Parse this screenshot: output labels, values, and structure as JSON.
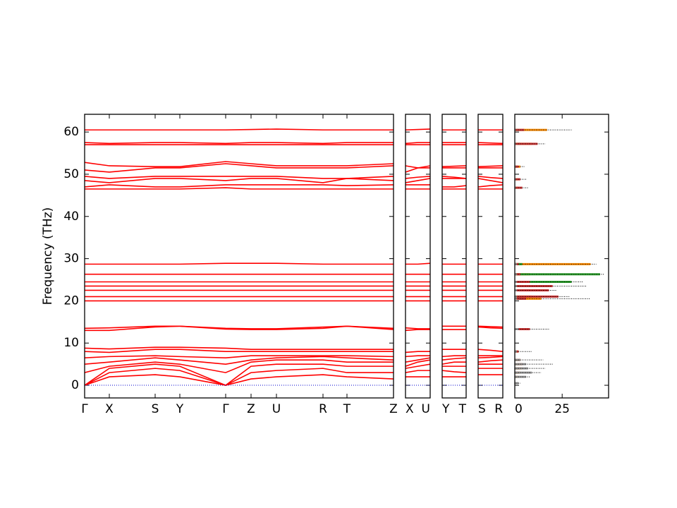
{
  "chart_data": [
    {
      "type": "line",
      "ylabel": "Frequency (THz)",
      "color": "#ff0000",
      "hline": 0,
      "hline_color": "#0000cc",
      "x": [
        0,
        0.35,
        1.0,
        1.35,
        2.0,
        2.36,
        2.72,
        3.38,
        3.72,
        4.38
      ],
      "xlim": [
        0,
        4.38
      ],
      "xticks": [
        {
          "value": 0,
          "label": "Γ"
        },
        {
          "value": 0.35,
          "label": "X"
        },
        {
          "value": 1.0,
          "label": "S"
        },
        {
          "value": 1.35,
          "label": "Y"
        },
        {
          "value": 2.0,
          "label": "Γ"
        },
        {
          "value": 2.36,
          "label": "Z"
        },
        {
          "value": 2.72,
          "label": "U"
        },
        {
          "value": 3.38,
          "label": "R"
        },
        {
          "value": 3.72,
          "label": "T"
        },
        {
          "value": 4.38,
          "label": "Z"
        }
      ],
      "ylim": [
        -3,
        64.2
      ],
      "yticks": [
        0,
        10,
        20,
        30,
        40,
        50,
        60
      ],
      "series": [
        {
          "values": [
            0,
            2,
            2.5,
            2,
            0,
            1.5,
            2,
            2.5,
            2,
            1.5
          ]
        },
        {
          "values": [
            0,
            3,
            4,
            3.5,
            0,
            3,
            3.5,
            4,
            3,
            3
          ]
        },
        {
          "values": [
            0,
            4,
            5,
            4.5,
            0,
            4.5,
            5,
            5,
            4.5,
            4.5
          ]
        },
        {
          "values": [
            3,
            4.5,
            5.5,
            5,
            3,
            5.5,
            6,
            6,
            5.5,
            5.5
          ]
        },
        {
          "values": [
            5,
            5.5,
            6.5,
            6,
            5,
            6,
            6.5,
            6.8,
            6.5,
            6
          ]
        },
        {
          "values": [
            6.5,
            6.8,
            7,
            6.8,
            6.5,
            7,
            7,
            7,
            7,
            6.8
          ]
        },
        {
          "values": [
            8,
            7.8,
            8.5,
            8.5,
            8,
            8,
            8,
            8,
            8,
            8
          ]
        },
        {
          "values": [
            8.8,
            8.6,
            9,
            9,
            8.8,
            8.5,
            8.5,
            8.5,
            8.5,
            8.5
          ]
        },
        {
          "values": [
            13,
            13,
            13.8,
            14,
            13.3,
            13.2,
            13.2,
            13.5,
            14,
            13.2
          ]
        },
        {
          "values": [
            13.5,
            13.6,
            14,
            14,
            13.5,
            13.4,
            13.4,
            13.8,
            14,
            13.5
          ]
        },
        {
          "values": [
            20,
            20,
            20,
            20,
            20,
            20,
            20,
            20,
            20,
            20
          ]
        },
        {
          "values": [
            21,
            21,
            21,
            21,
            21,
            21,
            21,
            21,
            21,
            21
          ]
        },
        {
          "values": [
            22.5,
            22.5,
            22.5,
            22.5,
            22.5,
            22.5,
            22.5,
            22.5,
            22.5,
            22.5
          ]
        },
        {
          "values": [
            23.5,
            23.5,
            23.5,
            23.5,
            23.5,
            23.5,
            23.5,
            23.5,
            23.5,
            23.5
          ]
        },
        {
          "values": [
            24.5,
            24.5,
            24.5,
            24.5,
            24.5,
            24.5,
            24.5,
            24.5,
            24.5,
            24.5
          ]
        },
        {
          "values": [
            26.3,
            26.3,
            26.3,
            26.3,
            26.3,
            26.3,
            26.3,
            26.3,
            26.3,
            26.3
          ]
        },
        {
          "values": [
            28.7,
            28.7,
            28.7,
            28.7,
            28.9,
            28.9,
            28.9,
            28.7,
            28.7,
            28.7
          ]
        },
        {
          "values": [
            46.5,
            46.5,
            46.5,
            46.5,
            46.8,
            46.5,
            46.5,
            46.5,
            46.5,
            46.5
          ]
        },
        {
          "values": [
            47,
            47.5,
            47,
            47,
            47.5,
            47.5,
            47.5,
            47.5,
            47.3,
            47.5
          ]
        },
        {
          "values": [
            48.5,
            48,
            49,
            49,
            48.5,
            49,
            49,
            48,
            49,
            48.5
          ]
        },
        {
          "values": [
            49.5,
            49,
            49.5,
            49.5,
            49.5,
            49.5,
            49.5,
            49,
            49,
            49.5
          ]
        },
        {
          "values": [
            51,
            50.5,
            51.5,
            51.5,
            52.5,
            52,
            51.5,
            51.5,
            51.5,
            52
          ]
        },
        {
          "values": [
            52.8,
            52,
            51.8,
            51.8,
            53,
            52.5,
            52,
            52,
            52,
            52.5
          ]
        },
        {
          "values": [
            57,
            57,
            57,
            57,
            57,
            57,
            57,
            57,
            57,
            57
          ]
        },
        {
          "values": [
            57.5,
            57.3,
            57.5,
            57.5,
            57.3,
            57.5,
            57.5,
            57.3,
            57.5,
            57.5
          ]
        },
        {
          "values": [
            60.5,
            60.5,
            60.5,
            60.5,
            60.5,
            60.6,
            60.7,
            60.5,
            60.5,
            60.5
          ]
        }
      ]
    },
    {
      "type": "line",
      "color": "#ff0000",
      "hline": 0,
      "hline_color": "#0000cc",
      "x": [
        0,
        0.5,
        1
      ],
      "xlim": [
        0,
        1
      ],
      "xticks": [
        {
          "value": 0,
          "label": "X"
        },
        {
          "value": 1,
          "label": "U"
        }
      ],
      "ylim": [
        -3,
        64.2
      ],
      "yticks": [
        0,
        10,
        20,
        30,
        40,
        50,
        60
      ],
      "series": [
        {
          "values": [
            2,
            2,
            2
          ]
        },
        {
          "values": [
            3,
            3.5,
            3.5
          ]
        },
        {
          "values": [
            4,
            4.5,
            5
          ]
        },
        {
          "values": [
            4.5,
            5.5,
            6
          ]
        },
        {
          "values": [
            5.5,
            6,
            6.5
          ]
        },
        {
          "values": [
            6.8,
            7,
            7
          ]
        },
        {
          "values": [
            7.8,
            8,
            8
          ]
        },
        {
          "values": [
            13,
            13.2,
            13.2
          ]
        },
        {
          "values": [
            13.6,
            13.4,
            13.4
          ]
        },
        {
          "values": [
            20,
            20,
            20
          ]
        },
        {
          "values": [
            21,
            21,
            21
          ]
        },
        {
          "values": [
            22.5,
            22.5,
            22.5
          ]
        },
        {
          "values": [
            23.5,
            23.5,
            23.5
          ]
        },
        {
          "values": [
            24.5,
            24.5,
            24.5
          ]
        },
        {
          "values": [
            26.3,
            26.3,
            26.3
          ]
        },
        {
          "values": [
            28.7,
            28.7,
            28.9
          ]
        },
        {
          "values": [
            46.5,
            46.5,
            46.5
          ]
        },
        {
          "values": [
            47.5,
            47.5,
            47.5
          ]
        },
        {
          "values": [
            48,
            48.5,
            49
          ]
        },
        {
          "values": [
            49,
            49.3,
            49.5
          ]
        },
        {
          "values": [
            50.5,
            51.5,
            52
          ]
        },
        {
          "values": [
            52,
            51.5,
            51.5
          ]
        },
        {
          "values": [
            57,
            57,
            57
          ]
        },
        {
          "values": [
            57.3,
            57.5,
            57.5
          ]
        },
        {
          "values": [
            60.5,
            60.6,
            60.7
          ]
        }
      ]
    },
    {
      "type": "line",
      "color": "#ff0000",
      "hline": 0,
      "hline_color": "#0000cc",
      "x": [
        0,
        0.5,
        1
      ],
      "xlim": [
        0,
        1
      ],
      "xticks": [
        {
          "value": 0,
          "label": "Y"
        },
        {
          "value": 1,
          "label": "T"
        }
      ],
      "ylim": [
        -3,
        64.2
      ],
      "yticks": [
        0,
        10,
        20,
        30,
        40,
        50,
        60
      ],
      "series": [
        {
          "values": [
            2,
            2,
            2
          ]
        },
        {
          "values": [
            3.5,
            3.2,
            3
          ]
        },
        {
          "values": [
            4.5,
            4.5,
            4.5
          ]
        },
        {
          "values": [
            5,
            5.5,
            5.5
          ]
        },
        {
          "values": [
            6,
            6.3,
            6.5
          ]
        },
        {
          "values": [
            6.8,
            7,
            7
          ]
        },
        {
          "values": [
            8.5,
            8.5,
            8.5
          ]
        },
        {
          "values": [
            13.2,
            13.2,
            13.2
          ]
        },
        {
          "values": [
            14,
            14,
            14
          ]
        },
        {
          "values": [
            20,
            20,
            20
          ]
        },
        {
          "values": [
            21,
            21,
            21
          ]
        },
        {
          "values": [
            22.5,
            22.5,
            22.5
          ]
        },
        {
          "values": [
            23.5,
            23.5,
            23.5
          ]
        },
        {
          "values": [
            24.5,
            24.5,
            24.5
          ]
        },
        {
          "values": [
            26.3,
            26.3,
            26.3
          ]
        },
        {
          "values": [
            28.7,
            28.7,
            28.7
          ]
        },
        {
          "values": [
            46.5,
            46.5,
            46.5
          ]
        },
        {
          "values": [
            47,
            47,
            47.3
          ]
        },
        {
          "values": [
            49,
            49,
            49
          ]
        },
        {
          "values": [
            49.5,
            49.3,
            49
          ]
        },
        {
          "values": [
            51.5,
            51.5,
            51.5
          ]
        },
        {
          "values": [
            51.8,
            51.9,
            52
          ]
        },
        {
          "values": [
            57,
            57,
            57
          ]
        },
        {
          "values": [
            57.5,
            57.5,
            57.5
          ]
        },
        {
          "values": [
            60.5,
            60.5,
            60.5
          ]
        }
      ]
    },
    {
      "type": "line",
      "color": "#ff0000",
      "hline": 0,
      "hline_color": "#0000cc",
      "x": [
        0,
        0.5,
        1
      ],
      "xlim": [
        0,
        1
      ],
      "xticks": [
        {
          "value": 0,
          "label": "S"
        },
        {
          "value": 1,
          "label": "R"
        }
      ],
      "ylim": [
        -3,
        64.2
      ],
      "yticks": [
        0,
        10,
        20,
        30,
        40,
        50,
        60
      ],
      "series": [
        {
          "values": [
            2.5,
            2.5,
            2.5
          ]
        },
        {
          "values": [
            4,
            4,
            4
          ]
        },
        {
          "values": [
            5,
            5,
            5
          ]
        },
        {
          "values": [
            5.5,
            5.8,
            6
          ]
        },
        {
          "values": [
            6.5,
            6.6,
            6.8
          ]
        },
        {
          "values": [
            7,
            7,
            7
          ]
        },
        {
          "values": [
            8.5,
            8.3,
            8
          ]
        },
        {
          "values": [
            13.8,
            13.6,
            13.5
          ]
        },
        {
          "values": [
            14,
            13.9,
            13.8
          ]
        },
        {
          "values": [
            20,
            20,
            20
          ]
        },
        {
          "values": [
            21,
            21,
            21
          ]
        },
        {
          "values": [
            22.5,
            22.5,
            22.5
          ]
        },
        {
          "values": [
            23.5,
            23.5,
            23.5
          ]
        },
        {
          "values": [
            24.5,
            24.5,
            24.5
          ]
        },
        {
          "values": [
            26.3,
            26.3,
            26.3
          ]
        },
        {
          "values": [
            28.7,
            28.7,
            28.7
          ]
        },
        {
          "values": [
            46.5,
            46.5,
            46.5
          ]
        },
        {
          "values": [
            47,
            47.3,
            47.5
          ]
        },
        {
          "values": [
            49,
            48.5,
            48
          ]
        },
        {
          "values": [
            49.5,
            49.2,
            49
          ]
        },
        {
          "values": [
            51.5,
            51.5,
            51.5
          ]
        },
        {
          "values": [
            51.8,
            51.9,
            52
          ]
        },
        {
          "values": [
            57,
            57,
            57
          ]
        },
        {
          "values": [
            57.5,
            57.4,
            57.3
          ]
        },
        {
          "values": [
            60.5,
            60.5,
            60.5
          ]
        }
      ]
    },
    {
      "type": "dos",
      "y": [
        0.5,
        2,
        3,
        4,
        5,
        6,
        8,
        13.3,
        20.5,
        21,
        22.5,
        23.5,
        24.5,
        26.3,
        28.7,
        46.8,
        48.8,
        51.8,
        57.2,
        60.5
      ],
      "xlim": [
        0,
        49.5
      ],
      "xticks": [
        0,
        25
      ],
      "ylim": [
        -3,
        64.2
      ],
      "yticks": [
        0,
        10,
        20,
        30,
        40,
        50,
        60
      ],
      "series": [
        {
          "color": "#000000",
          "dotted": true,
          "values": [
            3,
            8,
            14,
            16,
            20,
            15,
            9,
            18,
            40,
            29,
            22,
            38,
            36,
            47,
            43,
            7,
            6,
            5,
            16,
            30
          ]
        },
        {
          "color": "#ff8c00",
          "values": [
            0.5,
            2,
            3,
            4,
            4,
            3,
            2,
            6,
            14,
            9,
            6,
            11,
            10,
            8,
            40,
            2,
            2,
            3,
            9,
            17
          ]
        },
        {
          "color": "#2ca02c",
          "values": [
            0.3,
            1,
            1.5,
            2,
            2,
            1.5,
            1,
            3,
            4,
            3,
            8,
            4,
            30,
            45,
            4,
            1,
            1,
            1,
            3,
            2
          ]
        },
        {
          "color": "#cc3333",
          "values": [
            0.3,
            1,
            2,
            3,
            4,
            3,
            2,
            8,
            6,
            23,
            18,
            20,
            8,
            3,
            2,
            4,
            3,
            2,
            12,
            5
          ]
        },
        {
          "color": "#9a9a9a",
          "values": [
            2,
            6,
            9,
            7,
            6,
            3,
            1,
            2,
            1,
            1,
            1,
            1,
            1,
            1,
            1,
            0.5,
            0.5,
            0.5,
            0.5,
            0.5
          ]
        }
      ]
    }
  ]
}
